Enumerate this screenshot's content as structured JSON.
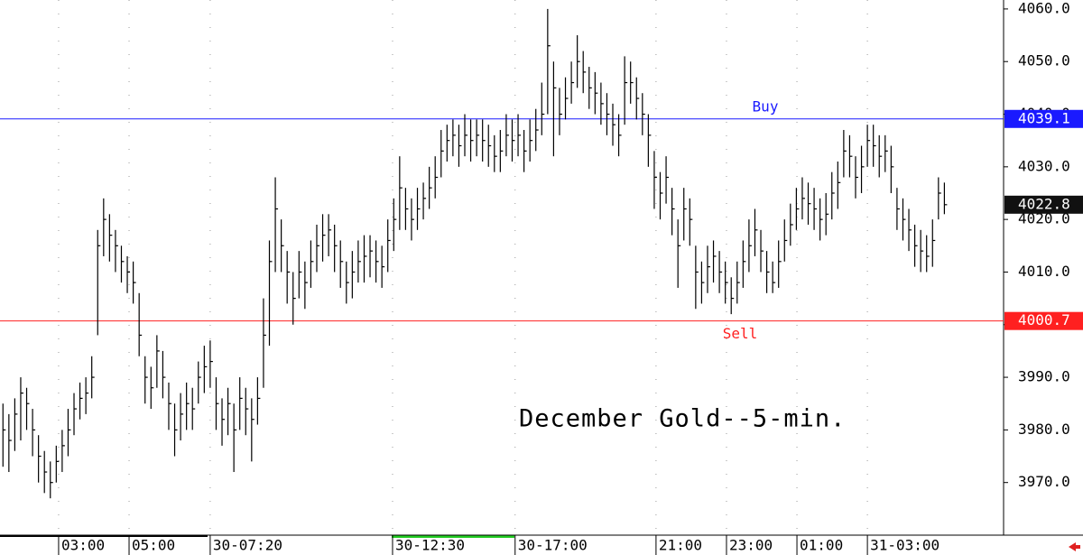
{
  "chart_data": {
    "type": "hlc",
    "annotation": "December Gold--5-min.",
    "color": "#000000",
    "high": [
      3985,
      3983,
      3986,
      3990,
      3988,
      3984,
      3979,
      3976,
      3974,
      3977,
      3980,
      3984,
      3987,
      3989,
      3990,
      3994,
      4018,
      4024,
      4021,
      4018,
      4015,
      4013,
      4012,
      4006,
      3994,
      3992,
      3998,
      3995,
      3989,
      3985,
      3987,
      3989,
      3988,
      3993,
      3996,
      3997,
      3990,
      3986,
      3988,
      3985,
      3990,
      3988,
      3986,
      3990,
      4005,
      4016,
      4028,
      4020,
      4014,
      4010,
      4014,
      4012,
      4016,
      4019,
      4021,
      4021,
      4019,
      4016,
      4012,
      4014,
      4016,
      4017,
      4017,
      4016,
      4015,
      4020,
      4024,
      4032,
      4026,
      4024,
      4026,
      4027,
      4030,
      4032,
      4037,
      4038,
      4039,
      4038,
      4040,
      4039,
      4039,
      4039,
      4038,
      4036,
      4037,
      4040,
      4039,
      4040,
      4037,
      4039,
      4041,
      4046,
      4060,
      4050,
      4045,
      4047,
      4050,
      4055,
      4052,
      4049,
      4048,
      4046,
      4044,
      4042,
      4040,
      4051,
      4050,
      4047,
      4044,
      4040,
      4033,
      4029,
      4032,
      4026,
      4020,
      4026,
      4024,
      4015,
      4012,
      4015,
      4016,
      4014,
      4012,
      4009,
      4012,
      4016,
      4020,
      4022,
      4018,
      4014,
      4012,
      4016,
      4020,
      4023,
      4026,
      4028,
      4027,
      4026,
      4024,
      4025,
      4029,
      4031,
      4037,
      4036,
      4032,
      4034,
      4038,
      4038,
      4036,
      4036,
      4034,
      4026,
      4024,
      4022,
      4019,
      4018,
      4017,
      4020,
      4028,
      4027
    ],
    "low": [
      3973,
      3972,
      3976,
      3978,
      3980,
      3975,
      3970,
      3968,
      3967,
      3970,
      3972,
      3975,
      3979,
      3982,
      3983,
      3986,
      3998,
      4013,
      4012,
      4010,
      4008,
      4006,
      4004,
      3994,
      3985,
      3984,
      3988,
      3986,
      3980,
      3975,
      3978,
      3980,
      3980,
      3985,
      3987,
      3988,
      3980,
      3977,
      3979,
      3972,
      3980,
      3979,
      3974,
      3981,
      3988,
      3996,
      4010,
      4010,
      4004,
      4000,
      4005,
      4003,
      4007,
      4010,
      4012,
      4013,
      4010,
      4007,
      4004,
      4005,
      4008,
      4008,
      4009,
      4008,
      4007,
      4010,
      4014,
      4018,
      4018,
      4016,
      4018,
      4020,
      4022,
      4024,
      4028,
      4031,
      4032,
      4030,
      4032,
      4031,
      4032,
      4031,
      4030,
      4029,
      4029,
      4032,
      4031,
      4032,
      4029,
      4031,
      4033,
      4036,
      4040,
      4032,
      4036,
      4039,
      4042,
      4045,
      4044,
      4041,
      4040,
      4038,
      4036,
      4034,
      4032,
      4038,
      4042,
      4039,
      4036,
      4030,
      4022,
      4020,
      4023,
      4017,
      4007,
      4016,
      4015,
      4003,
      4004,
      4006,
      4008,
      4006,
      4004,
      4002,
      4004,
      4007,
      4010,
      4013,
      4010,
      4006,
      4006,
      4007,
      4012,
      4015,
      4018,
      4020,
      4019,
      4018,
      4016,
      4017,
      4020,
      4022,
      4028,
      4028,
      4024,
      4025,
      4030,
      4030,
      4028,
      4029,
      4025,
      4018,
      4016,
      4014,
      4011,
      4010,
      4010,
      4011,
      4020,
      4021
    ],
    "close": [
      3980,
      3978,
      3983,
      3987,
      3985,
      3980,
      3975,
      3972,
      3970,
      3974,
      3977,
      3980,
      3984,
      3986,
      3987,
      3990,
      4015,
      4020,
      4017,
      4015,
      4012,
      4010,
      4008,
      3998,
      3990,
      3988,
      3995,
      3990,
      3985,
      3980,
      3983,
      3985,
      3984,
      3990,
      3992,
      3993,
      3985,
      3982,
      3985,
      3980,
      3986,
      3984,
      3982,
      3986,
      3998,
      4012,
      4022,
      4015,
      4010,
      4005,
      4010,
      4008,
      4012,
      4015,
      4017,
      4018,
      4015,
      4012,
      4008,
      4010,
      4012,
      4013,
      4014,
      4012,
      4011,
      4016,
      4020,
      4026,
      4022,
      4020,
      4022,
      4024,
      4026,
      4028,
      4033,
      4035,
      4036,
      4034,
      4036,
      4035,
      4036,
      4035,
      4034,
      4032,
      4033,
      4036,
      4035,
      4036,
      4033,
      4035,
      4037,
      4040,
      4053,
      4045,
      4040,
      4043,
      4046,
      4050,
      4048,
      4045,
      4044,
      4042,
      4040,
      4038,
      4036,
      4046,
      4046,
      4043,
      4040,
      4036,
      4028,
      4025,
      4028,
      4022,
      4015,
      4022,
      4020,
      4010,
      4008,
      4011,
      4013,
      4010,
      4008,
      4005,
      4008,
      4012,
      4015,
      4018,
      4014,
      4010,
      4008,
      4012,
      4016,
      4019,
      4022,
      4024,
      4023,
      4022,
      4020,
      4021,
      4025,
      4027,
      4033,
      4032,
      4028,
      4030,
      4035,
      4034,
      4032,
      4033,
      4030,
      4022,
      4020,
      4018,
      4015,
      4014,
      4013,
      4016,
      4025,
      4022.8
    ],
    "xlim": [
      -0.5,
      169
    ],
    "xticks": [
      {
        "value": 9.4,
        "label": "03:00"
      },
      {
        "value": 21.3,
        "label": "05:00"
      },
      {
        "value": 35,
        "label": "30-07:20"
      },
      {
        "value": 65.8,
        "label": "30-12:30"
      },
      {
        "value": 86.5,
        "label": "30-17:00"
      },
      {
        "value": 110.3,
        "label": "21:00"
      },
      {
        "value": 122.2,
        "label": "23:00"
      },
      {
        "value": 134.1,
        "label": "01:00"
      },
      {
        "value": 146,
        "label": "31-03:00"
      }
    ],
    "ylim": [
      3960,
      4061.7
    ],
    "yticks": [
      {
        "value": 3970,
        "label": "3970.0"
      },
      {
        "value": 3980,
        "label": "3980.0"
      },
      {
        "value": 3990,
        "label": "3990.0"
      },
      {
        "value": 4000,
        "label": "4000.0"
      },
      {
        "value": 4010,
        "label": "4010.0"
      },
      {
        "value": 4020,
        "label": "4020.0"
      },
      {
        "value": 4030,
        "label": "4030.0"
      },
      {
        "value": 4040,
        "label": "4040.0"
      },
      {
        "value": 4050,
        "label": "4050.0"
      },
      {
        "value": 4060,
        "label": "4060.0"
      }
    ],
    "reference_lines": [
      {
        "name": "Buy",
        "value": 4039.1,
        "color": "#1a1aff"
      },
      {
        "name": "Sell",
        "value": 4000.7,
        "color": "#ff2020"
      }
    ],
    "last_price_color": "#111111",
    "grid": true
  }
}
